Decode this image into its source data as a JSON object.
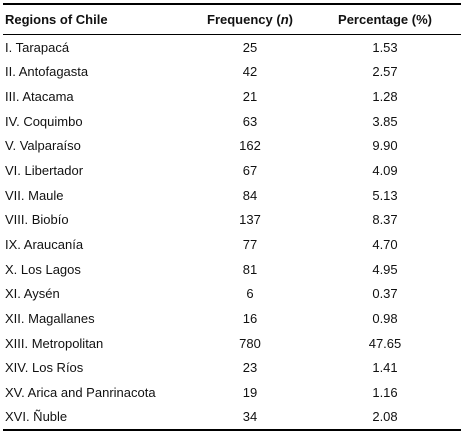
{
  "table": {
    "headers": {
      "region": "Regions of Chile",
      "frequency_prefix": "Frequency (",
      "frequency_var": "n",
      "frequency_suffix": ")",
      "percentage": "Percentage (%)"
    },
    "rows": [
      {
        "region": "I. Tarapacá",
        "frequency": "25",
        "percentage": "1.53"
      },
      {
        "region": "II. Antofagasta",
        "frequency": "42",
        "percentage": "2.57"
      },
      {
        "region": "III. Atacama",
        "frequency": "21",
        "percentage": "1.28"
      },
      {
        "region": "IV. Coquimbo",
        "frequency": "63",
        "percentage": "3.85"
      },
      {
        "region": "V. Valparaíso",
        "frequency": "162",
        "percentage": "9.90"
      },
      {
        "region": "VI. Libertador",
        "frequency": "67",
        "percentage": "4.09"
      },
      {
        "region": "VII. Maule",
        "frequency": "84",
        "percentage": "5.13"
      },
      {
        "region": "VIII. Biobío",
        "frequency": "137",
        "percentage": "8.37"
      },
      {
        "region": "IX. Araucanía",
        "frequency": "77",
        "percentage": "4.70"
      },
      {
        "region": "X. Los Lagos",
        "frequency": "81",
        "percentage": "4.95"
      },
      {
        "region": "XI. Aysén",
        "frequency": "6",
        "percentage": "0.37"
      },
      {
        "region": "XII. Magallanes",
        "frequency": "16",
        "percentage": "0.98"
      },
      {
        "region": "XIII. Metropolitan",
        "frequency": "780",
        "percentage": "47.65"
      },
      {
        "region": "XIV. Los Ríos",
        "frequency": "23",
        "percentage": "1.41"
      },
      {
        "region": "XV. Arica and Panrinacota",
        "frequency": "19",
        "percentage": "1.16"
      },
      {
        "region": "XVI. Ñuble",
        "frequency": "34",
        "percentage": "2.08"
      }
    ]
  }
}
